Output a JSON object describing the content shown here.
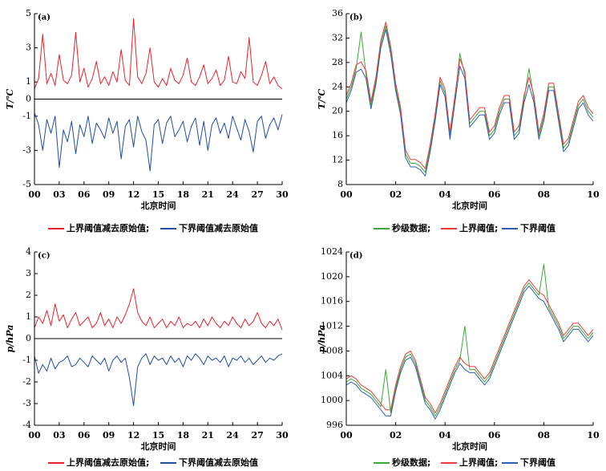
{
  "chart_data": [
    {
      "type": "line",
      "panel_label": "(a)",
      "x_label": "北京时间",
      "y_label": "T/℃",
      "x": [
        0,
        0.5,
        1,
        1.5,
        2,
        2.5,
        3,
        3.5,
        4,
        4.5,
        5,
        5.5,
        6,
        6.5,
        7,
        7.5,
        8,
        8.5,
        9,
        9.5,
        10,
        10.5,
        11,
        11.5,
        12,
        12.5,
        13,
        13.5,
        14,
        14.5,
        15,
        15.5,
        16,
        16.5,
        17,
        17.5,
        18,
        18.5,
        19,
        19.5,
        20,
        20.5,
        21,
        21.5,
        22,
        22.5,
        23,
        23.5,
        24,
        24.5,
        25,
        25.5,
        26,
        26.5,
        27,
        27.5,
        28,
        28.5,
        29,
        29.5,
        30
      ],
      "xlim": [
        0,
        30
      ],
      "xticks": [
        {
          "value": 0,
          "label": "00"
        },
        {
          "value": 3,
          "label": "03"
        },
        {
          "value": 6,
          "label": "06"
        },
        {
          "value": 9,
          "label": "09"
        },
        12,
        15,
        18,
        21,
        24,
        27,
        30
      ],
      "ylim": [
        -5,
        5
      ],
      "yticks": [
        -5,
        -3,
        -1,
        0,
        1,
        3,
        5
      ],
      "zero_line": true,
      "series": [
        {
          "name": "上界阈值减去原始值;",
          "color": "#e8222a",
          "values": [
            0.6,
            1.2,
            3.8,
            0.9,
            1.5,
            0.8,
            2.6,
            1.1,
            0.9,
            1.4,
            3.9,
            1.0,
            1.8,
            0.7,
            1.2,
            2.2,
            0.9,
            1.3,
            0.8,
            1.6,
            1.0,
            2.9,
            1.1,
            0.8,
            4.7,
            1.3,
            0.9,
            1.5,
            3.0,
            1.0,
            0.7,
            1.2,
            0.8,
            1.8,
            1.1,
            0.9,
            1.4,
            2.4,
            1.0,
            0.8,
            1.3,
            2.0,
            0.9,
            1.2,
            1.7,
            0.8,
            1.1,
            2.5,
            1.0,
            0.9,
            1.6,
            1.2,
            3.6,
            1.0,
            0.8,
            1.4,
            2.2,
            0.9,
            1.3,
            0.8,
            0.6
          ]
        },
        {
          "name": "下界阈值减去原始值",
          "color": "#1f4ea3",
          "values": [
            -0.8,
            -1.5,
            -3.0,
            -1.2,
            -2.0,
            -1.0,
            -4.0,
            -1.8,
            -2.5,
            -1.3,
            -3.2,
            -1.5,
            -2.2,
            -1.0,
            -2.6,
            -1.4,
            -1.8,
            -2.3,
            -1.1,
            -2.0,
            -1.3,
            -3.5,
            -1.6,
            -1.2,
            -2.8,
            -1.0,
            -1.9,
            -2.4,
            -4.2,
            -1.5,
            -1.2,
            -2.6,
            -1.4,
            -1.0,
            -2.2,
            -1.8,
            -1.3,
            -2.5,
            -1.6,
            -1.1,
            -2.7,
            -1.3,
            -3.0,
            -1.5,
            -1.1,
            -2.0,
            -1.4,
            -2.3,
            -1.0,
            -1.7,
            -2.4,
            -1.2,
            -1.9,
            -3.1,
            -1.3,
            -1.0,
            -2.3,
            -1.5,
            -1.1,
            -1.8,
            -0.9
          ]
        }
      ]
    },
    {
      "type": "line",
      "panel_label": "(b)",
      "x_label": "北京时间",
      "y_label": "T/℃",
      "x": [
        0,
        0.2,
        0.4,
        0.6,
        0.8,
        1,
        1.2,
        1.4,
        1.6,
        1.8,
        2,
        2.2,
        2.4,
        2.6,
        2.8,
        3,
        3.2,
        3.4,
        3.6,
        3.8,
        4,
        4.2,
        4.4,
        4.6,
        4.8,
        5,
        5.2,
        5.4,
        5.6,
        5.8,
        6,
        6.2,
        6.4,
        6.6,
        6.8,
        7,
        7.2,
        7.4,
        7.6,
        7.8,
        8,
        8.2,
        8.4,
        8.6,
        8.8,
        9,
        9.2,
        9.4,
        9.6,
        9.8,
        10
      ],
      "xlim": [
        0,
        10
      ],
      "xticks": [
        {
          "value": 0,
          "label": "00"
        },
        {
          "value": 2,
          "label": "02"
        },
        {
          "value": 4,
          "label": "04"
        },
        {
          "value": 6,
          "label": "06"
        },
        {
          "value": 8,
          "label": "08"
        },
        10
      ],
      "ylim": [
        8,
        36
      ],
      "yticks": [
        8,
        12,
        16,
        20,
        24,
        28,
        32,
        36
      ],
      "series": [
        {
          "name": "秒级数据;",
          "color": "#3aa935",
          "values": [
            22,
            24,
            27,
            33,
            26,
            21,
            25,
            31,
            34,
            30,
            24,
            20,
            13,
            11.5,
            11.5,
            11,
            10,
            14,
            19,
            25,
            23,
            16,
            22,
            29.5,
            26,
            18,
            19,
            20,
            20,
            16,
            17,
            20,
            22,
            22,
            16,
            17,
            22,
            27,
            22,
            16,
            19,
            24,
            24,
            19,
            14,
            15,
            18,
            21,
            22,
            20,
            19
          ]
        },
        {
          "name": "上界阈值;",
          "color": "#ee3b3b",
          "values": [
            22.6,
            24.6,
            27.6,
            28.1,
            26.6,
            21.6,
            25.6,
            31.6,
            34.6,
            30.6,
            24.6,
            20.6,
            13.6,
            12.1,
            12.1,
            11.6,
            10.6,
            14.6,
            19.6,
            25.6,
            23.6,
            16.6,
            22.6,
            28.6,
            26.6,
            18.6,
            19.6,
            20.6,
            20.6,
            16.6,
            17.6,
            20.6,
            22.6,
            22.6,
            16.6,
            17.6,
            22.6,
            25.6,
            22.6,
            16.6,
            19.6,
            24.6,
            24.6,
            19.6,
            14.6,
            15.6,
            18.6,
            21.6,
            22.6,
            20.6,
            19.6
          ]
        },
        {
          "name": "下界阈值",
          "color": "#2b5fb4",
          "values": [
            21.4,
            23.4,
            26.4,
            26.9,
            25.4,
            20.4,
            24.4,
            30.4,
            33.4,
            29.4,
            23.4,
            19.4,
            12.4,
            10.9,
            10.9,
            10.4,
            9.4,
            13.4,
            18.4,
            24.4,
            22.4,
            15.4,
            21.4,
            27.4,
            25.4,
            17.4,
            18.4,
            19.4,
            19.4,
            15.4,
            16.4,
            19.4,
            21.4,
            21.4,
            15.4,
            16.4,
            21.4,
            24.4,
            21.4,
            15.4,
            18.4,
            23.4,
            23.4,
            18.4,
            13.4,
            14.4,
            17.4,
            20.4,
            21.4,
            19.4,
            18.4
          ]
        }
      ]
    },
    {
      "type": "line",
      "panel_label": "(c)",
      "x_label": "北京时间",
      "y_label": "p/hPa",
      "x": [
        0,
        0.5,
        1,
        1.5,
        2,
        2.5,
        3,
        3.5,
        4,
        4.5,
        5,
        5.5,
        6,
        6.5,
        7,
        7.5,
        8,
        8.5,
        9,
        9.5,
        10,
        10.5,
        11,
        11.5,
        12,
        12.5,
        13,
        13.5,
        14,
        14.5,
        15,
        15.5,
        16,
        16.5,
        17,
        17.5,
        18,
        18.5,
        19,
        19.5,
        20,
        20.5,
        21,
        21.5,
        22,
        22.5,
        23,
        23.5,
        24,
        24.5,
        25,
        25.5,
        26,
        26.5,
        27,
        27.5,
        28,
        28.5,
        29,
        29.5,
        30
      ],
      "xlim": [
        0,
        30
      ],
      "xticks": [
        {
          "value": 0,
          "label": "00"
        },
        {
          "value": 3,
          "label": "03"
        },
        {
          "value": 6,
          "label": "06"
        },
        {
          "value": 9,
          "label": "09"
        },
        12,
        15,
        18,
        21,
        24,
        27,
        30
      ],
      "ylim": [
        -4,
        4
      ],
      "yticks": [
        -4,
        -3,
        -2,
        -1,
        0,
        1,
        2,
        3,
        4
      ],
      "zero_line": true,
      "series": [
        {
          "name": "上界阈值减去原始值;",
          "color": "#e8222a",
          "values": [
            0.5,
            1.0,
            0.7,
            1.3,
            0.6,
            1.6,
            0.8,
            1.1,
            0.5,
            0.9,
            1.2,
            0.6,
            0.8,
            1.0,
            0.5,
            0.7,
            1.2,
            0.6,
            0.9,
            0.5,
            1.0,
            0.7,
            1.1,
            1.6,
            2.3,
            1.2,
            0.8,
            0.6,
            1.0,
            0.5,
            0.7,
            0.9,
            0.5,
            0.8,
            0.6,
            1.0,
            0.5,
            0.7,
            0.6,
            0.8,
            0.5,
            0.9,
            0.6,
            1.0,
            0.7,
            0.5,
            0.8,
            0.6,
            1.0,
            0.7,
            0.5,
            0.9,
            0.6,
            0.8,
            1.2,
            0.7,
            0.5,
            0.8,
            0.6,
            0.9,
            0.4
          ]
        },
        {
          "name": "下界阈值减去原始值",
          "color": "#1f4ea3",
          "values": [
            -0.8,
            -1.6,
            -1.2,
            -1.5,
            -0.9,
            -1.4,
            -1.1,
            -1.0,
            -0.8,
            -1.3,
            -1.2,
            -0.9,
            -1.1,
            -1.3,
            -0.8,
            -1.0,
            -1.2,
            -0.9,
            -1.5,
            -1.0,
            -0.8,
            -1.1,
            -0.9,
            -1.8,
            -3.1,
            -1.3,
            -0.9,
            -0.7,
            -1.2,
            -0.8,
            -1.0,
            -0.9,
            -1.2,
            -0.8,
            -1.1,
            -0.9,
            -1.3,
            -0.8,
            -1.0,
            -0.7,
            -0.9,
            -1.2,
            -0.8,
            -1.0,
            -0.9,
            -1.1,
            -0.8,
            -1.3,
            -0.9,
            -1.0,
            -0.8,
            -1.1,
            -0.9,
            -1.2,
            -1.0,
            -0.8,
            -1.1,
            -0.9,
            -1.0,
            -0.8,
            -0.7
          ]
        }
      ]
    },
    {
      "type": "line",
      "panel_label": "(d)",
      "x_label": "北京时间",
      "y_label": "p/hPa",
      "x": [
        0,
        0.2,
        0.4,
        0.6,
        0.8,
        1,
        1.2,
        1.4,
        1.6,
        1.8,
        2,
        2.2,
        2.4,
        2.6,
        2.8,
        3,
        3.2,
        3.4,
        3.6,
        3.8,
        4,
        4.2,
        4.4,
        4.6,
        4.8,
        5,
        5.2,
        5.4,
        5.6,
        5.8,
        6,
        6.2,
        6.4,
        6.6,
        6.8,
        7,
        7.2,
        7.4,
        7.6,
        7.8,
        8,
        8.2,
        8.4,
        8.6,
        8.8,
        9,
        9.2,
        9.4,
        9.6,
        9.8,
        10
      ],
      "xlim": [
        0,
        10
      ],
      "xticks": [
        {
          "value": 0,
          "label": "00"
        },
        {
          "value": 2,
          "label": "02"
        },
        {
          "value": 4,
          "label": "04"
        },
        {
          "value": 6,
          "label": "06"
        },
        {
          "value": 8,
          "label": "08"
        },
        10
      ],
      "ylim": [
        996,
        1024
      ],
      "yticks": [
        996,
        1000,
        1004,
        1008,
        1012,
        1016,
        1020,
        1024
      ],
      "series": [
        {
          "name": "秒级数据;",
          "color": "#3aa935",
          "values": [
            1003,
            1003.5,
            1003,
            1002,
            1001.5,
            1001,
            1000,
            999,
            1005,
            998,
            1002,
            1005,
            1007,
            1007.5,
            1006,
            1003,
            1000,
            999,
            997.5,
            999,
            1001,
            1003,
            1005,
            1006.5,
            1012,
            1005,
            1005,
            1004,
            1003,
            1004,
            1006,
            1008,
            1010,
            1012,
            1014,
            1016,
            1018,
            1019,
            1018,
            1017,
            1022,
            1015,
            1013.5,
            1012,
            1010,
            1011,
            1012,
            1012,
            1011,
            1010,
            1011
          ]
        },
        {
          "name": "上界阈值;",
          "color": "#ee3b3b",
          "values": [
            1003.5,
            1004,
            1003.5,
            1002.5,
            1002,
            1001.5,
            1000.5,
            999.5,
            998.5,
            998.5,
            1002.5,
            1005.5,
            1007.5,
            1008,
            1006.5,
            1003.5,
            1000.5,
            999.5,
            998,
            999.5,
            1001.5,
            1003.5,
            1005.5,
            1007,
            1006,
            1005.5,
            1005.5,
            1004.5,
            1003.5,
            1004.5,
            1006.5,
            1008.5,
            1010.5,
            1012.5,
            1014.5,
            1016.5,
            1018.5,
            1019.5,
            1018.5,
            1017.5,
            1017,
            1015.5,
            1014,
            1012.5,
            1010.5,
            1011.5,
            1012.5,
            1012.5,
            1011.5,
            1010.5,
            1011.5
          ]
        },
        {
          "name": "下界阈值",
          "color": "#2b5fb4",
          "values": [
            1002.5,
            1003,
            1002.5,
            1001.5,
            1001,
            1000.5,
            999.5,
            998.5,
            997.5,
            997.5,
            1001.5,
            1004.5,
            1006.5,
            1007,
            1005.5,
            1002.5,
            999.5,
            998.5,
            997,
            998.5,
            1000.5,
            1002.5,
            1004.5,
            1006,
            1005,
            1004.5,
            1004.5,
            1003.5,
            1002.5,
            1003.5,
            1005.5,
            1007.5,
            1009.5,
            1011.5,
            1013.5,
            1015.5,
            1017.5,
            1018.5,
            1017.5,
            1016.5,
            1016,
            1014.5,
            1013,
            1011.5,
            1009.5,
            1010.5,
            1011.5,
            1011.5,
            1010.5,
            1009.5,
            1010.5
          ]
        }
      ]
    }
  ]
}
